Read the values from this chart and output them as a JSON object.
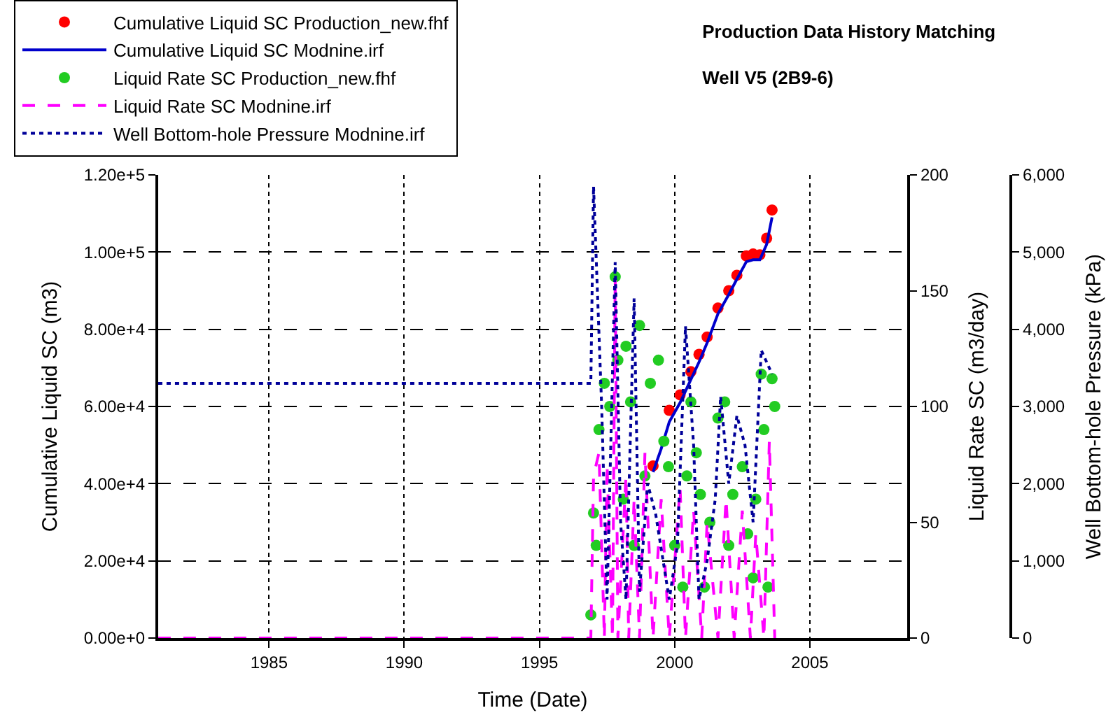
{
  "chart_data": {
    "type": "line",
    "title": "Production Data History Matching",
    "subtitle": "Well V5 (2B9-6)",
    "xlabel": "Time (Date)",
    "ylabel": "Cumulative Liquid SC (m3)",
    "y2label": "Liquid Rate SC (m3/day)",
    "y3label": "Well Bottom-hole Pressure (kPa)",
    "xlim": [
      1980.9,
      2008.6
    ],
    "xticks": [
      1985,
      1990,
      1995,
      2000,
      2005
    ],
    "ylim": [
      0,
      120000
    ],
    "yticks": [
      {
        "value": 0,
        "label": "0.00e+0"
      },
      {
        "value": 20000,
        "label": "2.00e+4"
      },
      {
        "value": 40000,
        "label": "4.00e+4"
      },
      {
        "value": 60000,
        "label": "6.00e+4"
      },
      {
        "value": 80000,
        "label": "8.00e+4"
      },
      {
        "value": 100000,
        "label": "1.00e+5"
      },
      {
        "value": 120000,
        "label": "1.20e+5"
      }
    ],
    "y2lim": [
      0,
      200
    ],
    "y2ticks": [
      0,
      50,
      100,
      150,
      200
    ],
    "y3lim": [
      0,
      6000
    ],
    "y3ticks": [
      {
        "value": 0,
        "label": "0"
      },
      {
        "value": 1000,
        "label": "1,000"
      },
      {
        "value": 2000,
        "label": "2,000"
      },
      {
        "value": 3000,
        "label": "3,000"
      },
      {
        "value": 4000,
        "label": "4,000"
      },
      {
        "value": 5000,
        "label": "5,000"
      },
      {
        "value": 6000,
        "label": "6,000"
      }
    ],
    "grid": true,
    "legend": "top left",
    "series": [
      {
        "name": "Cumulative Liquid SC Production_new.fhf",
        "type": "scatter",
        "marker": "circle",
        "color": "#ff0000",
        "axis": "y",
        "x": [
          1999.2,
          1999.8,
          2000.2,
          2000.6,
          2000.9,
          2001.2,
          2001.6,
          2002.0,
          2002.3,
          2002.65,
          2002.9,
          2003.15,
          2003.4,
          2003.6
        ],
        "values": [
          44600,
          59000,
          63000,
          69000,
          73500,
          78000,
          85500,
          90000,
          94000,
          99000,
          99500,
          99300,
          103600,
          110900
        ]
      },
      {
        "name": "Cumulative Liquid SC Modnine.irf",
        "type": "line",
        "line_style": "solid",
        "color": "#0000cc",
        "axis": "y",
        "x": [
          1999.2,
          1999.5,
          1999.8,
          2000.2,
          2000.6,
          2000.9,
          2001.2,
          2001.6,
          2002.0,
          2002.3,
          2002.65,
          2002.9,
          2003.15,
          2003.4,
          2003.6
        ],
        "values": [
          43000,
          49000,
          56000,
          61000,
          67000,
          71500,
          76500,
          84000,
          89000,
          93000,
          97500,
          98000,
          98000,
          102000,
          109000
        ]
      },
      {
        "name": "Liquid Rate SC Production_new.fhf",
        "type": "scatter",
        "marker": "circle",
        "color": "#22cc22",
        "axis": "y2",
        "x": [
          1996.9,
          1997.0,
          1997.1,
          1997.2,
          1997.4,
          1997.6,
          1997.8,
          1997.9,
          1998.1,
          1998.2,
          1998.37,
          1998.5,
          1998.7,
          1998.9,
          1999.1,
          1999.4,
          1999.6,
          1999.77,
          2000.0,
          2000.3,
          2000.45,
          2000.6,
          2000.8,
          2000.95,
          2001.1,
          2001.3,
          2001.6,
          2001.85,
          2002.0,
          2002.15,
          2002.5,
          2002.7,
          2002.9,
          2003.0,
          2003.2,
          2003.3,
          2003.45,
          2003.6,
          2003.7
        ],
        "values": [
          10,
          54,
          40,
          90,
          110,
          100,
          156,
          120,
          60,
          126,
          102,
          40,
          135,
          70,
          110,
          120,
          85,
          74,
          40,
          22,
          70,
          102,
          80,
          62,
          22,
          50,
          95,
          102,
          40,
          62,
          74,
          45,
          26,
          60,
          114,
          90,
          22,
          112,
          100
        ]
      },
      {
        "name": "Liquid Rate SC Modnine.irf",
        "type": "line",
        "line_style": "dashed",
        "color": "#ff00ff",
        "axis": "y2",
        "x": [
          1980.9,
          1996.9,
          1997.0,
          1997.2,
          1997.4,
          1997.5,
          1997.7,
          1997.8,
          1997.9,
          1998.2,
          1998.3,
          1998.5,
          1998.7,
          1998.9,
          1999.2,
          1999.5,
          1999.8,
          2000.2,
          2000.4,
          2000.7,
          2001.0,
          2001.2,
          2001.6,
          2001.9,
          2002.2,
          2002.5,
          2002.8,
          2003.0,
          2003.3,
          2003.5,
          2003.7
        ],
        "values": [
          0,
          0,
          70,
          80,
          0,
          75,
          0,
          155,
          0,
          70,
          0,
          60,
          0,
          80,
          0,
          60,
          0,
          65,
          0,
          55,
          0,
          50,
          0,
          60,
          0,
          55,
          0,
          45,
          0,
          85,
          0
        ]
      },
      {
        "name": "Well Bottom-hole Pressure Modnine.irf",
        "type": "line",
        "line_style": "dotted",
        "color": "#000099",
        "axis": "y3",
        "x": [
          1980.9,
          1996.9,
          1997.0,
          1997.3,
          1997.5,
          1997.8,
          1998.0,
          1998.2,
          1998.5,
          1998.7,
          1999.0,
          1999.3,
          1999.8,
          2000.1,
          2000.4,
          2000.7,
          2000.9,
          2001.2,
          2001.5,
          2001.7,
          2002.0,
          2002.3,
          2002.6,
          2002.9,
          2003.2,
          2003.6
        ],
        "values": [
          3300,
          3300,
          5850,
          3000,
          500,
          4870,
          1500,
          500,
          4400,
          600,
          2000,
          1600,
          500,
          1200,
          4040,
          2500,
          500,
          1000,
          1800,
          3130,
          2000,
          2880,
          2500,
          1500,
          3730,
          3420
        ]
      }
    ]
  }
}
